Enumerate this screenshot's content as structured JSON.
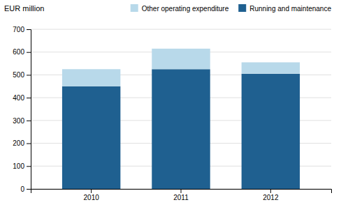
{
  "chart_data": {
    "type": "bar",
    "stacked": true,
    "categories": [
      "2010",
      "2011",
      "2012"
    ],
    "series": [
      {
        "name": "Running and maintenance",
        "color": "#1F6090",
        "values": [
          450,
          525,
          505
        ]
      },
      {
        "name": "Other operating expenditure",
        "color": "#B8D9EA",
        "values": [
          75,
          90,
          50
        ]
      }
    ],
    "y_label": "EUR million",
    "ylim": [
      0,
      700
    ],
    "yticks": [
      0,
      100,
      200,
      300,
      400,
      500,
      600,
      700
    ],
    "grid": true,
    "legend": "top"
  }
}
